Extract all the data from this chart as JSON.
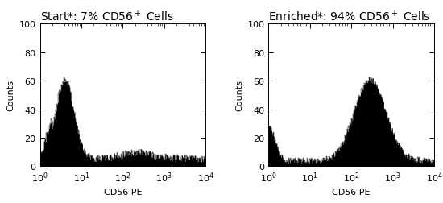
{
  "title_left": "Start*: 7% CD56$^+$ Cells",
  "title_right": "Enriched*: 94% CD56$^+$ Cells",
  "xlabel": "CD56 PE",
  "ylabel": "Counts",
  "xlim_log": [
    1,
    10000
  ],
  "ylim": [
    0,
    100
  ],
  "yticks": [
    0,
    20,
    40,
    60,
    80,
    100
  ],
  "background_color": "#ffffff",
  "hist_color": "#000000",
  "title_fontsize": 10,
  "axis_fontsize": 8,
  "tick_fontsize": 8
}
